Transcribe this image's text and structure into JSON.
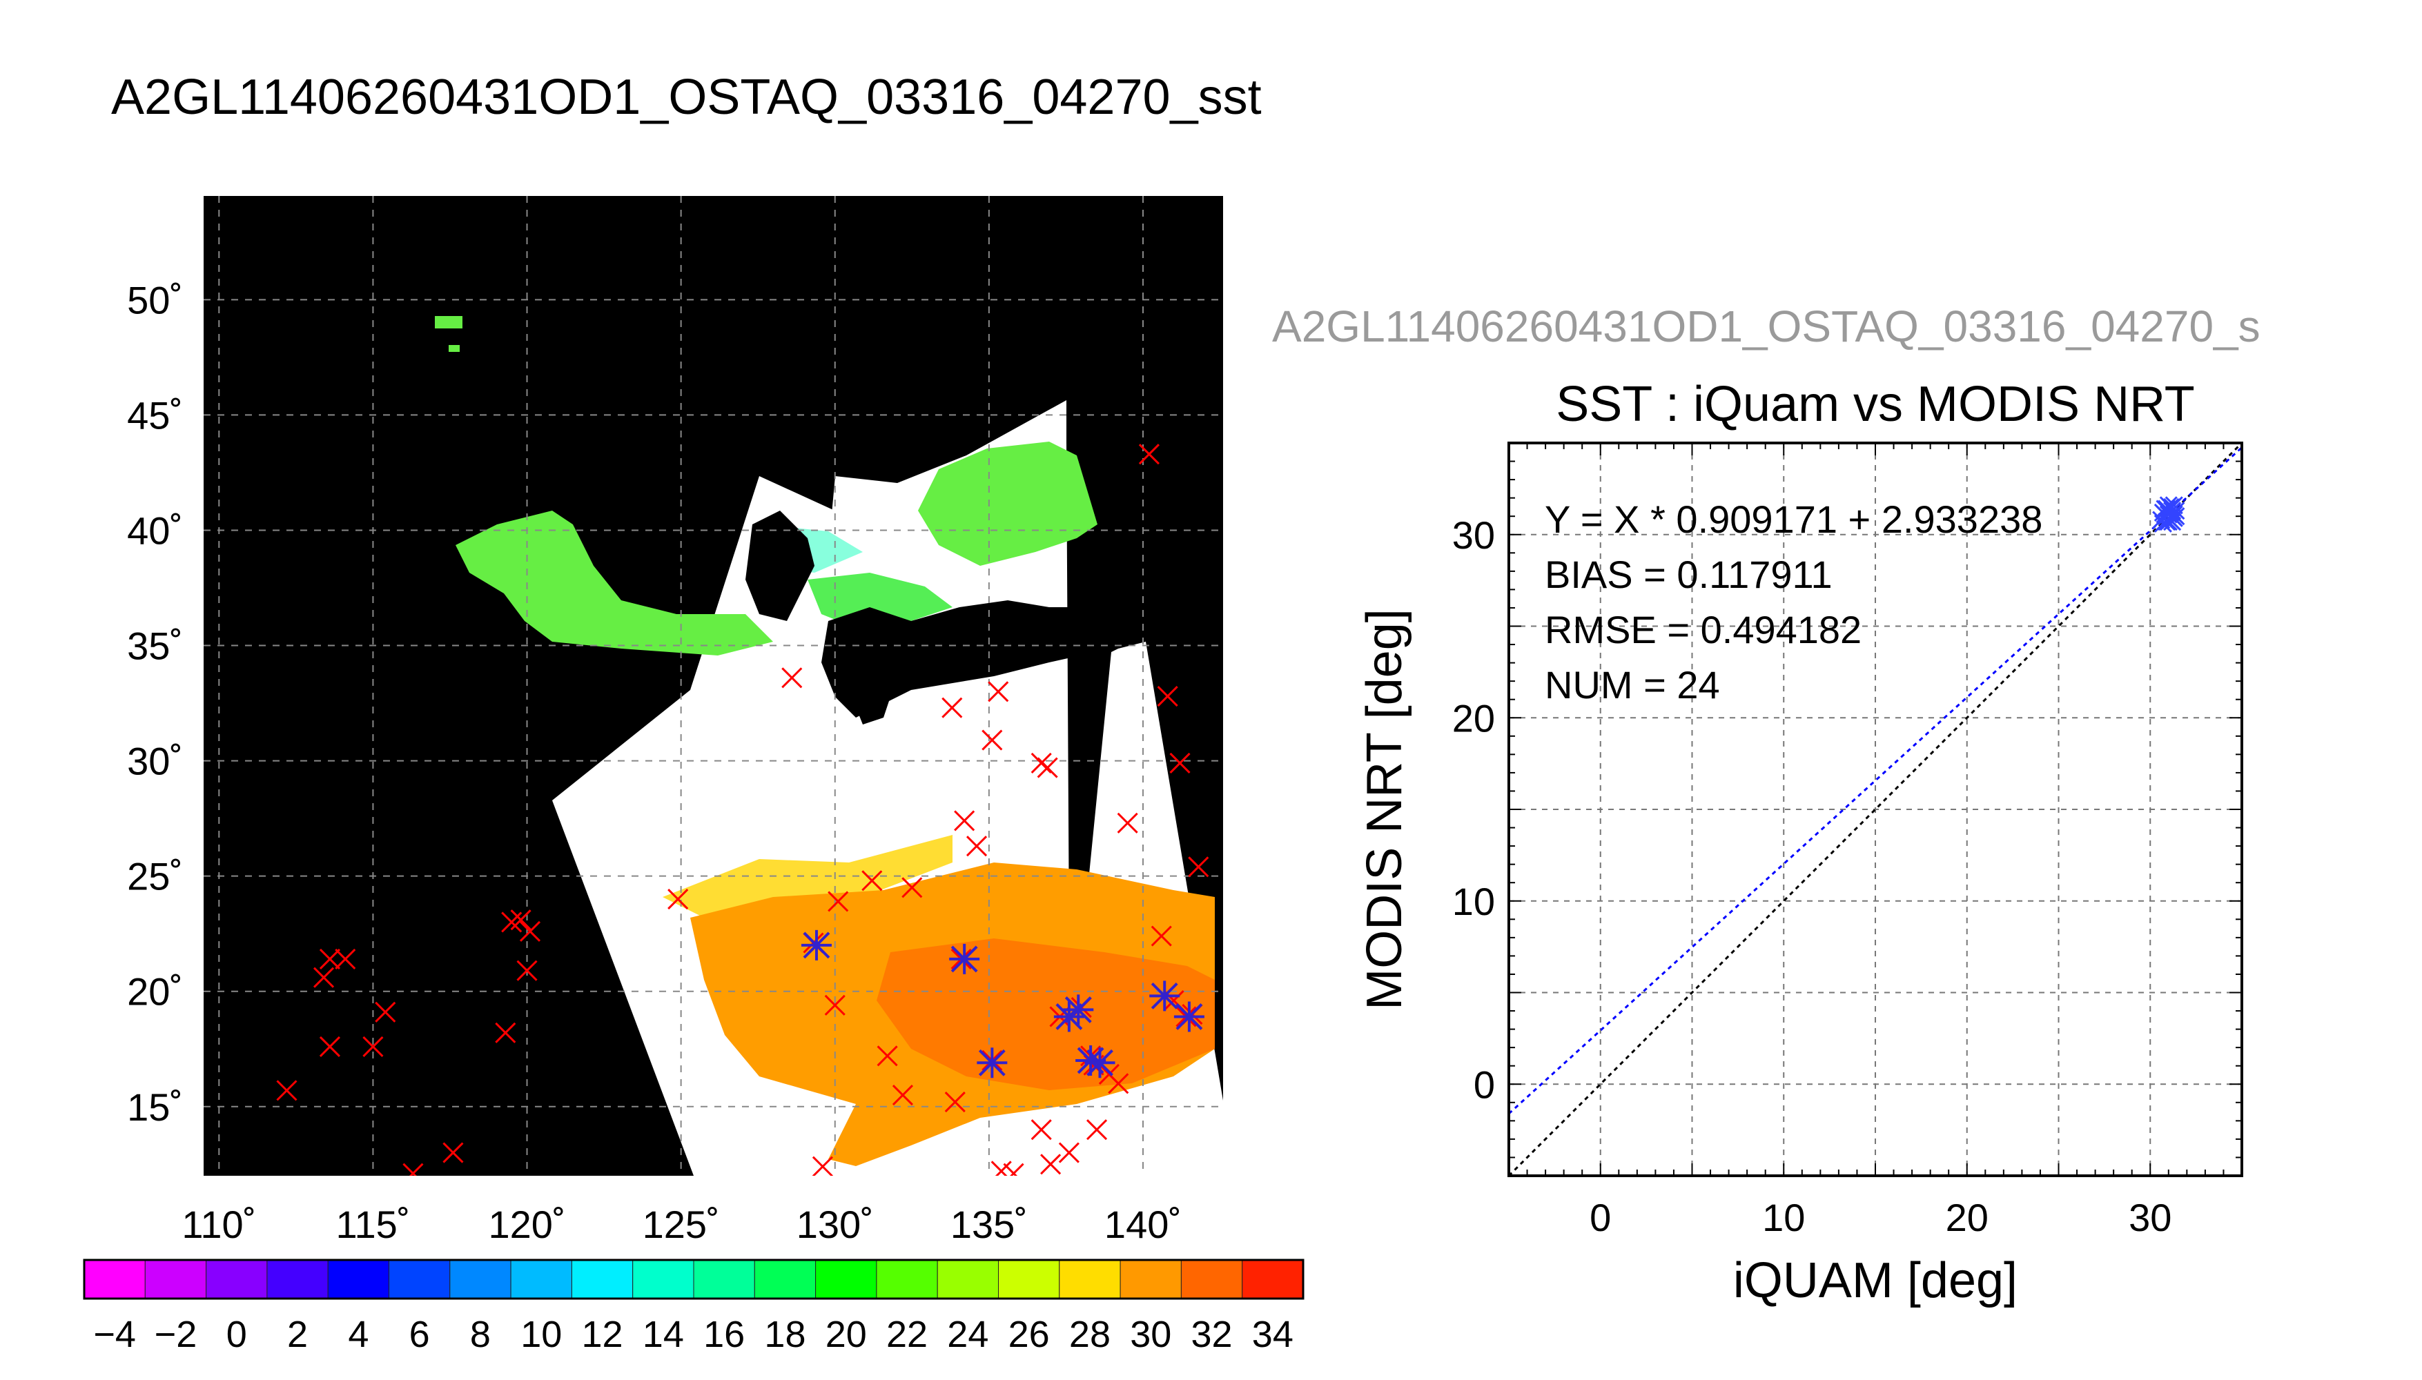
{
  "page": {
    "title": "A2GL11406260431OD1_OSTAQ_03316_04270_sst",
    "subtitle": "A2GL11406260431OD1_OSTAQ_03316_04270_s"
  },
  "map": {
    "lon_ticks": [
      "110˚",
      "115˚",
      "120˚",
      "125˚",
      "130˚",
      "135˚",
      "140˚"
    ],
    "lat_ticks": [
      "50˚",
      "45˚",
      "40˚",
      "35˚",
      "30˚",
      "25˚",
      "20˚",
      "15˚"
    ],
    "lon_values": [
      110,
      115,
      120,
      125,
      130,
      135,
      140
    ],
    "lat_values": [
      50,
      45,
      40,
      35,
      30,
      25,
      20,
      15
    ],
    "lon_range": [
      109.5,
      142.6
    ],
    "lat_range": [
      12.0,
      54.5
    ],
    "background_color": "#000000",
    "cloud_color": "#ffffff",
    "grid": "dashed",
    "iquam_marker_color": "#ff0000",
    "matchup_marker_color": "#3322cc",
    "iquam_points": [
      [
        112.2,
        15.7
      ],
      [
        113.4,
        20.6
      ],
      [
        113.6,
        21.4
      ],
      [
        114.1,
        21.4
      ],
      [
        113.6,
        17.6
      ],
      [
        115.0,
        17.6
      ],
      [
        115.4,
        19.1
      ],
      [
        116.3,
        12.1
      ],
      [
        117.6,
        13.0
      ],
      [
        119.3,
        18.2
      ],
      [
        119.5,
        23.0
      ],
      [
        119.8,
        23.1
      ],
      [
        120.1,
        22.6
      ],
      [
        120.0,
        20.9
      ],
      [
        124.9,
        24.0
      ],
      [
        128.6,
        33.6
      ],
      [
        129.3,
        22.1
      ],
      [
        129.6,
        12.4
      ],
      [
        130.0,
        19.4
      ],
      [
        130.1,
        23.9
      ],
      [
        131.2,
        24.8
      ],
      [
        131.7,
        17.2
      ],
      [
        132.2,
        15.5
      ],
      [
        132.5,
        24.5
      ],
      [
        133.8,
        32.3
      ],
      [
        134.2,
        27.4
      ],
      [
        134.1,
        21.4
      ],
      [
        133.9,
        15.2
      ],
      [
        134.6,
        26.3
      ],
      [
        135.1,
        30.9
      ],
      [
        135.3,
        33.0
      ],
      [
        135.1,
        17.0
      ],
      [
        135.4,
        12.2
      ],
      [
        135.8,
        12.1
      ],
      [
        136.7,
        29.9
      ],
      [
        136.9,
        29.7
      ],
      [
        136.7,
        14.0
      ],
      [
        137.0,
        12.5
      ],
      [
        137.3,
        18.9
      ],
      [
        137.6,
        13.0
      ],
      [
        138.0,
        19.3
      ],
      [
        138.3,
        17.2
      ],
      [
        138.5,
        14.0
      ],
      [
        138.4,
        16.8
      ],
      [
        138.9,
        16.4
      ],
      [
        139.2,
        16.0
      ],
      [
        139.5,
        27.3
      ],
      [
        140.2,
        43.3
      ],
      [
        140.6,
        22.4
      ],
      [
        140.8,
        32.8
      ],
      [
        141.2,
        29.9
      ],
      [
        141.0,
        19.6
      ],
      [
        141.4,
        18.9
      ],
      [
        141.6,
        19.0
      ],
      [
        141.8,
        25.4
      ]
    ],
    "matchup_points": [
      [
        129.4,
        22.0
      ],
      [
        134.2,
        21.4
      ],
      [
        135.1,
        16.9
      ],
      [
        137.6,
        18.9
      ],
      [
        137.9,
        19.2
      ],
      [
        138.3,
        17.0
      ],
      [
        138.6,
        16.9
      ],
      [
        140.7,
        19.8
      ],
      [
        141.5,
        18.9
      ]
    ]
  },
  "colorbar": {
    "tick_labels": [
      "−4",
      "−2",
      "0",
      "2",
      "4",
      "6",
      "8",
      "10",
      "12",
      "14",
      "16",
      "18",
      "20",
      "22",
      "24",
      "26",
      "28",
      "30",
      "32",
      "34"
    ],
    "tick_values": [
      -4,
      -2,
      0,
      2,
      4,
      6,
      8,
      10,
      12,
      14,
      16,
      18,
      20,
      22,
      24,
      26,
      28,
      30,
      32,
      34
    ],
    "range": [
      -5,
      35
    ],
    "segments": [
      -5,
      -3,
      -1,
      1,
      3,
      5,
      7,
      9,
      11,
      13,
      15,
      17,
      19,
      21,
      23,
      25,
      27,
      29,
      31,
      33
    ],
    "segment_width": 2,
    "colors": [
      "#ff00ff",
      "#cc00ff",
      "#8800ff",
      "#4400ff",
      "#0000ff",
      "#0044ff",
      "#0088ff",
      "#00bbff",
      "#00eeff",
      "#00ffcc",
      "#00ff99",
      "#00ff55",
      "#00ff00",
      "#55ff00",
      "#99ff00",
      "#ccff00",
      "#ffdd00",
      "#ff9900",
      "#ff6600",
      "#ff2200"
    ]
  },
  "chart_data": {
    "type": "scatter",
    "title": "SST : iQuam vs MODIS NRT",
    "xlabel": "iQUAM [deg]",
    "ylabel": "MODIS NRT [deg]",
    "xlim": [
      -5,
      35
    ],
    "ylim": [
      -5,
      35
    ],
    "xticks": [
      0,
      10,
      20,
      30
    ],
    "yticks": [
      0,
      10,
      20,
      30
    ],
    "xtick_labels": [
      "0",
      "10",
      "20",
      "30"
    ],
    "ytick_labels": [
      "0",
      "10",
      "20",
      "30"
    ],
    "grid": true,
    "annotations": [
      "Y = X * 0.909171 + 2.933238",
      "BIAS = 0.117911",
      "RMSE = 0.494182",
      "NUM = 24"
    ],
    "fit": {
      "slope": 0.909171,
      "intercept": 2.933238,
      "color": "#0000ff"
    },
    "identity_line_color": "#000000",
    "marker_color": "#3344ff",
    "points": [
      [
        30.6,
        30.8
      ],
      [
        30.8,
        31.1
      ],
      [
        30.9,
        31.4
      ],
      [
        31.0,
        30.9
      ],
      [
        31.1,
        31.2
      ],
      [
        31.2,
        31.5
      ],
      [
        31.3,
        30.9
      ],
      [
        31.0,
        31.6
      ],
      [
        30.7,
        30.6
      ],
      [
        30.9,
        30.7
      ],
      [
        31.2,
        31.3
      ],
      [
        31.4,
        31.3
      ],
      [
        31.1,
        30.8
      ],
      [
        31.3,
        31.6
      ],
      [
        30.8,
        31.4
      ],
      [
        31.0,
        31.1
      ],
      [
        31.2,
        30.7
      ],
      [
        31.4,
        31.0
      ],
      [
        30.9,
        31.0
      ],
      [
        31.1,
        31.5
      ],
      [
        31.3,
        31.1
      ],
      [
        30.7,
        31.2
      ],
      [
        31.2,
        31.0
      ],
      [
        31.0,
        30.7
      ]
    ]
  }
}
